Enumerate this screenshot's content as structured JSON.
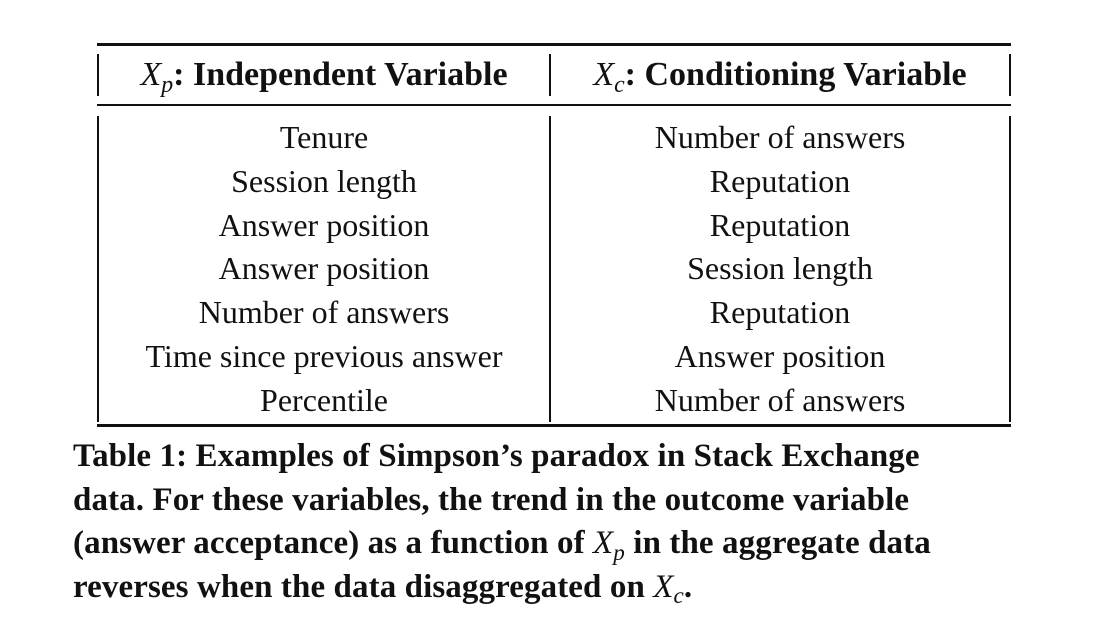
{
  "table": {
    "header": {
      "left": {
        "symbol": "X",
        "sub": "p",
        "label": ": Independent Variable"
      },
      "right": {
        "symbol": "X",
        "sub": "c",
        "label": ": Conditioning Variable"
      }
    },
    "rows": [
      {
        "independent": "Tenure",
        "conditioning": "Number of answers"
      },
      {
        "independent": "Session length",
        "conditioning": "Reputation"
      },
      {
        "independent": "Answer position",
        "conditioning": "Reputation"
      },
      {
        "independent": "Answer position",
        "conditioning": "Session length"
      },
      {
        "independent": "Number of answers",
        "conditioning": "Reputation"
      },
      {
        "independent": "Time since previous answer",
        "conditioning": "Answer position"
      },
      {
        "independent": "Percentile",
        "conditioning": "Number of answers"
      }
    ]
  },
  "caption": {
    "line1": "Table 1: Examples of Simpson’s paradox in Stack Exchange",
    "line2": "data. For these variables, the trend in the outcome variable",
    "line3_pre": "(answer acceptance) as a function of ",
    "line3_symbol": "X",
    "line3_sub": "p",
    "line3_post": " in the aggregate data",
    "line4_pre": "reverses when the data disaggregated on ",
    "line4_symbol": "X",
    "line4_sub": "c",
    "line4_post": "."
  }
}
